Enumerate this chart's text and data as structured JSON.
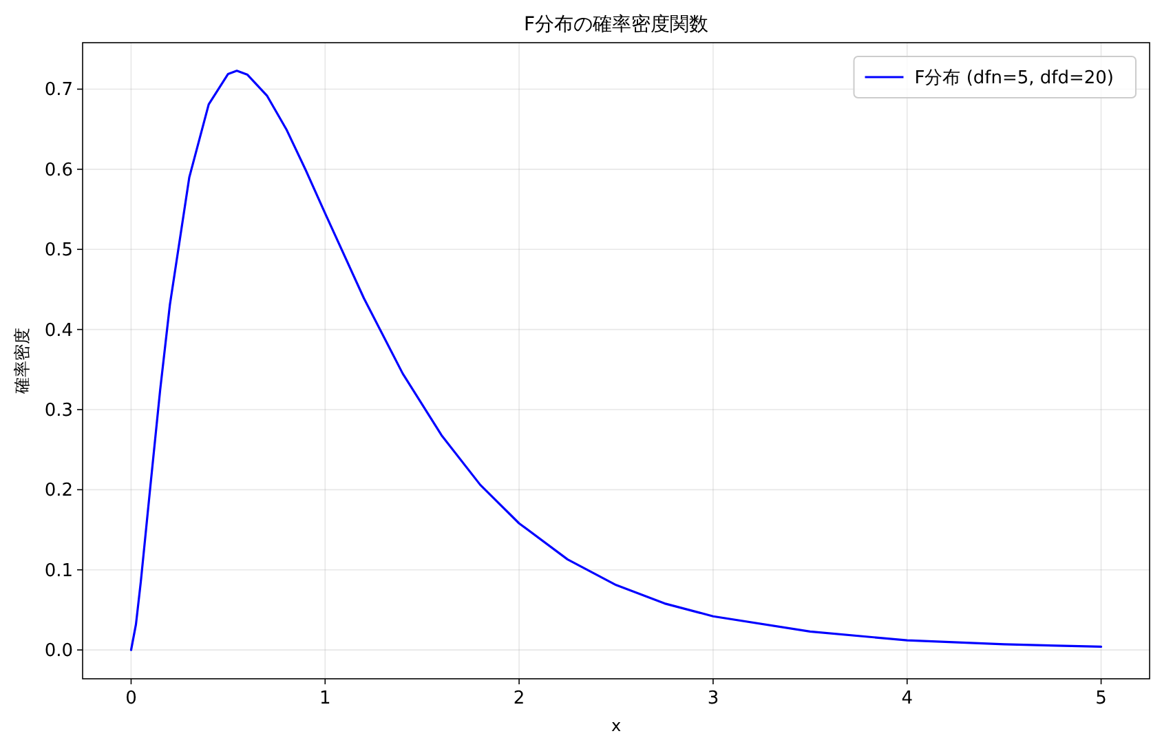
{
  "chart_data": {
    "type": "line",
    "title": "F分布の確率密度関数",
    "xlabel": "x",
    "ylabel": "確率密度",
    "series": [
      {
        "name": "F分布 (dfn=5, dfd=20)",
        "color": "#0000ff",
        "x": [
          0,
          0.025,
          0.05,
          0.1,
          0.15,
          0.2,
          0.3,
          0.4,
          0.5,
          0.545,
          0.6,
          0.7,
          0.8,
          0.9,
          1.0,
          1.2,
          1.4,
          1.6,
          1.8,
          2.0,
          2.25,
          2.5,
          2.75,
          3.0,
          3.5,
          4.0,
          4.5,
          5.0
        ],
        "values": [
          0,
          0.032,
          0.085,
          0.206,
          0.325,
          0.431,
          0.59,
          0.681,
          0.719,
          0.723,
          0.718,
          0.692,
          0.65,
          0.599,
          0.545,
          0.439,
          0.345,
          0.268,
          0.206,
          0.158,
          0.113,
          0.081,
          0.058,
          0.042,
          0.023,
          0.012,
          0.007,
          0.004
        ]
      }
    ],
    "xlim": [
      -0.25,
      5.25
    ],
    "ylim": [
      -0.036,
      0.758
    ],
    "xticks": [
      0,
      1,
      2,
      3,
      4,
      5
    ],
    "yticks": [
      {
        "value": 0,
        "label": "0.0"
      },
      {
        "value": 0.1,
        "label": "0.1"
      },
      {
        "value": 0.2,
        "label": "0.2"
      },
      {
        "value": 0.3,
        "label": "0.3"
      },
      {
        "value": 0.4,
        "label": "0.4"
      },
      {
        "value": 0.5,
        "label": "0.5"
      },
      {
        "value": 0.6,
        "label": "0.6"
      },
      {
        "value": 0.7,
        "label": "0.7"
      }
    ],
    "grid": true,
    "legend": "top right",
    "line_style": "solid"
  }
}
